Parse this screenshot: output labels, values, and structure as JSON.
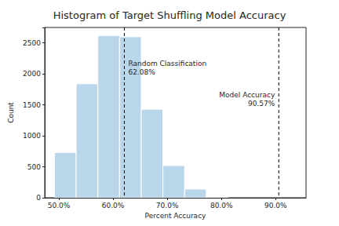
{
  "chart_data": {
    "type": "histogram",
    "title": "Histogram of Target Shuffling Model Accuracy",
    "x_label": "Percent Accuracy",
    "y_label": "Count",
    "bins": [
      49.2,
      53.2,
      57.2,
      61.2,
      65.2,
      69.2,
      73.2,
      77.2,
      81.2
    ],
    "values": [
      730,
      1840,
      2620,
      2600,
      1430,
      520,
      140,
      15
    ],
    "color": "#bad6ea",
    "xlim": [
      47.4,
      95.6
    ],
    "xticks": [
      {
        "value": 50,
        "label": "50.0%"
      },
      {
        "value": 60,
        "label": "60.0%"
      },
      {
        "value": 70,
        "label": "70.0%"
      },
      {
        "value": 80,
        "label": "80.0%"
      },
      {
        "value": 90,
        "label": "90.0%"
      }
    ],
    "ylim": [
      0,
      2750
    ],
    "yticks": [
      0,
      500,
      1000,
      1500,
      2000,
      2500
    ],
    "grid": false,
    "annotations": [
      {
        "x": 62.08,
        "text": "Random Classification",
        "x_label": "62.08%"
      },
      {
        "x": 90.57,
        "text": "Model Accuracy",
        "x_label": "90.57%"
      }
    ]
  }
}
